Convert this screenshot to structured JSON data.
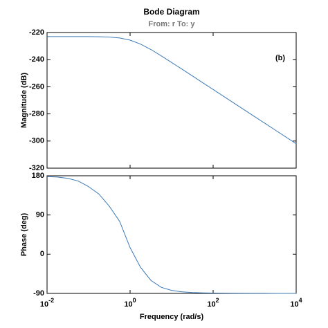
{
  "chart_data": [
    {
      "type": "line",
      "title": "Bode Diagram",
      "subtitle": "From: r  To: y",
      "annotation": "(b)",
      "ylabel": "Magnitude (dB)",
      "xscale": "log",
      "x": [
        0.01,
        0.01778,
        0.03162,
        0.05623,
        0.1,
        0.1778,
        0.3162,
        0.5623,
        1,
        1.778,
        3.162,
        5.623,
        10,
        17.78,
        31.62,
        56.23,
        100,
        316.2,
        1000,
        3162,
        10000
      ],
      "series": [
        {
          "color": "#3a78b5",
          "values": [
            -223.0,
            -223.0,
            -223.0,
            -223.0,
            -223.0,
            -223.1,
            -223.3,
            -224.0,
            -225.6,
            -228.5,
            -232.5,
            -237.2,
            -242.1,
            -247.0,
            -252.0,
            -257.0,
            -262.0,
            -272.0,
            -282.0,
            -292.0,
            -302.0
          ]
        }
      ],
      "xlim": [
        0.01,
        10000
      ],
      "xticks": [
        0.01,
        1,
        100,
        10000
      ],
      "ylim": [
        -320,
        -220
      ],
      "yticks": [
        -320,
        -300,
        -280,
        -260,
        -240,
        -220
      ]
    },
    {
      "type": "line",
      "ylabel": "Phase (deg)",
      "xlabel": "Frequency  (rad/s)",
      "xscale": "log",
      "x": [
        0.01,
        0.01778,
        0.03162,
        0.05623,
        0.1,
        0.1778,
        0.3162,
        0.5623,
        1,
        1.778,
        3.162,
        5.623,
        10,
        17.78,
        31.62,
        56.23,
        100,
        316.2,
        1000,
        3162,
        10000
      ],
      "series": [
        {
          "color": "#3a78b5",
          "values": [
            178,
            177,
            174,
            168,
            155,
            138,
            110,
            75,
            15,
            -30,
            -60,
            -76,
            -83,
            -86.5,
            -88,
            -88.8,
            -89.2,
            -89.6,
            -89.8,
            -89.9,
            -89.9
          ]
        }
      ],
      "xlim": [
        0.01,
        10000
      ],
      "xticks": [
        {
          "value": 0.01,
          "label": "10",
          "exponent": "-2"
        },
        {
          "value": 1,
          "label": "10",
          "exponent": "0"
        },
        {
          "value": 100,
          "label": "10",
          "exponent": "2"
        },
        {
          "value": 10000,
          "label": "10",
          "exponent": "4"
        }
      ],
      "ylim": [
        -90,
        180
      ],
      "yticks": [
        -90,
        0,
        90,
        180
      ]
    }
  ]
}
